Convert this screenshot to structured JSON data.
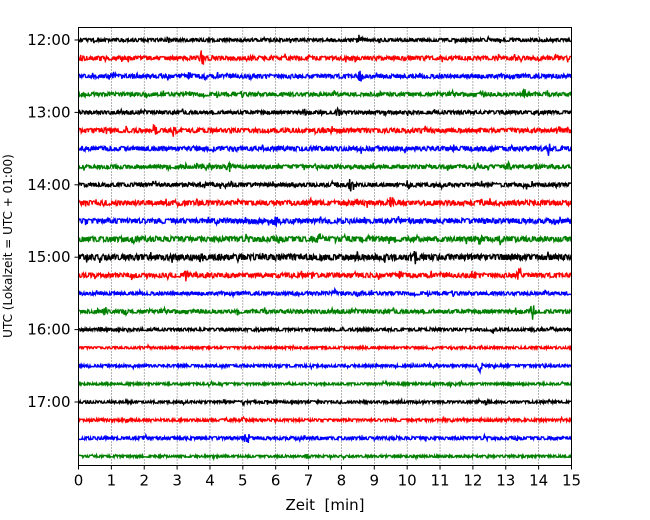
{
  "chart_data": {
    "type": "line",
    "title": "",
    "xlabel": "Zeit  [min]",
    "ylabel": "UTC (Lokalzeit = UTC + 01:00)",
    "xlim": [
      0,
      15
    ],
    "x_ticks": [
      "0",
      "1",
      "2",
      "3",
      "4",
      "5",
      "6",
      "7",
      "8",
      "9",
      "10",
      "11",
      "12",
      "13",
      "14",
      "15"
    ],
    "y_ticks": [
      {
        "label": "12:00",
        "trace_index": 0
      },
      {
        "label": "13:00",
        "trace_index": 4
      },
      {
        "label": "14:00",
        "trace_index": 8
      },
      {
        "label": "15:00",
        "trace_index": 12
      },
      {
        "label": "16:00",
        "trace_index": 16
      },
      {
        "label": "17:00",
        "trace_index": 20
      }
    ],
    "grid": "vertical dotted at each minute",
    "trace_interval_minutes": 15,
    "start_time": "12:00",
    "end_time": "17:45",
    "trace_colors": [
      "#000000",
      "#ff0000",
      "#0000ff",
      "#008000"
    ],
    "series": [
      {
        "start": "12:00",
        "color": "#000000",
        "noise": 1.0,
        "events": [
          [
            8.55,
            6
          ]
        ]
      },
      {
        "start": "12:15",
        "color": "#ff0000",
        "noise": 1.3,
        "events": [
          [
            3.75,
            9
          ],
          [
            5.2,
            4
          ],
          [
            14.55,
            4
          ]
        ]
      },
      {
        "start": "12:30",
        "color": "#0000ff",
        "noise": 1.3,
        "events": [
          [
            8.6,
            7
          ],
          [
            3.9,
            4
          ],
          [
            5.2,
            3
          ]
        ]
      },
      {
        "start": "12:45",
        "color": "#008000",
        "noise": 1.2,
        "events": [
          [
            13.6,
            8
          ],
          [
            3.3,
            4
          ],
          [
            12.3,
            3
          ]
        ]
      },
      {
        "start": "13:00",
        "color": "#000000",
        "noise": 1.1,
        "events": [
          [
            7.9,
            6
          ],
          [
            9.3,
            3
          ]
        ]
      },
      {
        "start": "13:15",
        "color": "#ff0000",
        "noise": 1.4,
        "events": [
          [
            0.9,
            5
          ],
          [
            2.3,
            6
          ],
          [
            2.9,
            6
          ],
          [
            14.6,
            4
          ]
        ]
      },
      {
        "start": "13:30",
        "color": "#0000ff",
        "noise": 1.4,
        "events": [
          [
            8.55,
            6
          ],
          [
            14.3,
            6
          ],
          [
            10.3,
            3
          ]
        ]
      },
      {
        "start": "13:45",
        "color": "#008000",
        "noise": 1.2,
        "events": [
          [
            4.6,
            7
          ],
          [
            13.1,
            5
          ]
        ]
      },
      {
        "start": "14:00",
        "color": "#000000",
        "noise": 1.2,
        "events": [
          [
            8.3,
            8
          ],
          [
            10.0,
            4
          ],
          [
            13.6,
            3
          ]
        ]
      },
      {
        "start": "14:15",
        "color": "#ff0000",
        "noise": 1.5,
        "events": [
          [
            3.6,
            5
          ],
          [
            9.5,
            7
          ],
          [
            3.0,
            4
          ]
        ]
      },
      {
        "start": "14:30",
        "color": "#0000ff",
        "noise": 1.5,
        "events": [
          [
            6.0,
            6
          ],
          [
            5.8,
            3
          ]
        ]
      },
      {
        "start": "14:45",
        "color": "#008000",
        "noise": 1.6,
        "events": [
          [
            1.7,
            5
          ],
          [
            7.35,
            5
          ],
          [
            12.9,
            8
          ],
          [
            12.2,
            4
          ]
        ]
      },
      {
        "start": "15:00",
        "color": "#000000",
        "noise": 1.8,
        "events": [
          [
            10.2,
            10
          ],
          [
            3.7,
            6
          ],
          [
            4.4,
            4
          ],
          [
            14.3,
            5
          ]
        ]
      },
      {
        "start": "15:15",
        "color": "#ff0000",
        "noise": 1.4,
        "events": [
          [
            3.3,
            6
          ],
          [
            13.4,
            9
          ],
          [
            12.0,
            4
          ]
        ]
      },
      {
        "start": "15:30",
        "color": "#0000ff",
        "noise": 1.1,
        "events": [
          [
            8.6,
            3
          ],
          [
            7.8,
            3
          ]
        ]
      },
      {
        "start": "15:45",
        "color": "#008000",
        "noise": 1.2,
        "events": [
          [
            0.8,
            5
          ],
          [
            13.8,
            9
          ],
          [
            1.4,
            3
          ]
        ]
      },
      {
        "start": "16:00",
        "color": "#000000",
        "noise": 0.9,
        "events": [
          [
            14.4,
            4
          ],
          [
            12.6,
            3
          ]
        ]
      },
      {
        "start": "16:15",
        "color": "#ff0000",
        "noise": 0.7,
        "events": []
      },
      {
        "start": "16:30",
        "color": "#0000ff",
        "noise": 0.8,
        "events": [
          [
            12.2,
            8
          ]
        ]
      },
      {
        "start": "16:45",
        "color": "#008000",
        "noise": 0.7,
        "events": []
      },
      {
        "start": "17:00",
        "color": "#000000",
        "noise": 0.8,
        "events": [
          [
            5.0,
            3
          ],
          [
            12.4,
            3
          ]
        ]
      },
      {
        "start": "17:15",
        "color": "#ff0000",
        "noise": 0.8,
        "events": [
          [
            1.5,
            3
          ],
          [
            5.0,
            3
          ]
        ]
      },
      {
        "start": "17:30",
        "color": "#0000ff",
        "noise": 1.0,
        "events": [
          [
            5.1,
            10
          ],
          [
            10.6,
            3
          ]
        ]
      },
      {
        "start": "17:45",
        "color": "#008000",
        "noise": 0.7,
        "events": [
          [
            7.0,
            3
          ]
        ]
      }
    ]
  }
}
